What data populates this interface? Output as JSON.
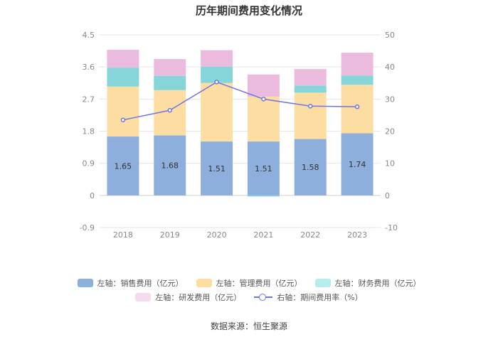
{
  "chart_data": {
    "type": "bar+line",
    "title": "历年期间费用变化情况",
    "categories": [
      "2018",
      "2019",
      "2020",
      "2021",
      "2022",
      "2023"
    ],
    "left_axis": {
      "ylim": [
        -0.9,
        4.5
      ],
      "ticks": [
        "-0.9",
        "0",
        "0.9",
        "1.8",
        "2.7",
        "3.6",
        "4.5"
      ]
    },
    "right_axis": {
      "ylim": [
        -10,
        50
      ],
      "ticks": [
        "-10",
        "0",
        "10",
        "20",
        "30",
        "40",
        "50"
      ]
    },
    "stacked_series": [
      {
        "name": "左轴：销售费用（亿元）",
        "color": "#8eaedc",
        "values": [
          1.65,
          1.68,
          1.51,
          1.51,
          1.58,
          1.74
        ],
        "labels": [
          "1.65",
          "1.68",
          "1.51",
          "1.51",
          "1.58",
          "1.74"
        ]
      },
      {
        "name": "左轴：管理费用（亿元）",
        "color": "#fddea2",
        "values": [
          1.4,
          1.27,
          1.64,
          1.26,
          1.3,
          1.36
        ]
      },
      {
        "name": "左轴：财务费用（亿元）",
        "color": "#86d6d9",
        "values": [
          0.53,
          0.4,
          0.46,
          -0.03,
          0.2,
          0.26
        ]
      },
      {
        "name": "左轴：研发费用（亿元）",
        "color": "#ebbbdd",
        "values": [
          0.5,
          0.47,
          0.46,
          0.62,
          0.46,
          0.64
        ]
      }
    ],
    "line_series": {
      "name": "右轴：期间费用率（%）",
      "color": "#6f74e6",
      "values": [
        23.5,
        26.5,
        35.3,
        30.0,
        27.8,
        27.6
      ]
    },
    "legend_position": "bottom",
    "source": "数据来源：恒生聚源"
  }
}
